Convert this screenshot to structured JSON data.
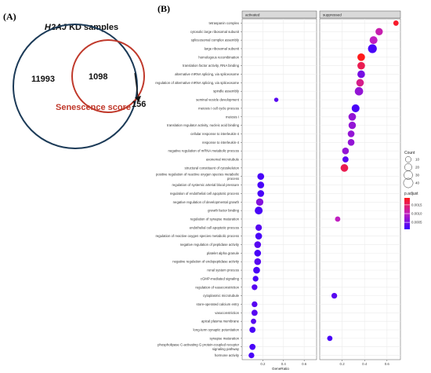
{
  "panel_a": {
    "label": "(A)",
    "title_italic": "H2AJ",
    "title_rest": " KD samples",
    "outer_count": "11993",
    "inner_count": "1098",
    "outside_count": "156",
    "inner_label": "Senescence score",
    "colors": {
      "outer": "#1b3a57",
      "inner": "#c0392b",
      "inner_label": "#c0392b"
    }
  },
  "panel_b": {
    "label": "(B)"
  },
  "chart_data": {
    "type": "scatter",
    "facets": [
      "activated",
      "suppressed"
    ],
    "xlabel": "GeneRatio",
    "x_ticks": [
      0.2,
      0.4,
      0.6
    ],
    "xlim": [
      0.0,
      0.72
    ],
    "terms": [
      "tetraspanin complex",
      "cytosolic large ribosomal subunit",
      "spliceosomal complex assembly",
      "large ribosomal subunit",
      "homologous recombination",
      "translation factor activity, RNA binding",
      "alternative mRNA splicing, via spliceosome",
      "regulation of alternative mRNA splicing, via spliceosome",
      "spindle assembly",
      "seminal vesicle development",
      "meiosis I cell cycle process",
      "meiosis I",
      "translation regulator activity, nucleic acid binding",
      "cellular response to interleukin-4",
      "response to interleukin-4",
      "negative regulation of mRNA metabolic process",
      "axonemal microtubule",
      "structural constituent of cytoskeleton",
      "positive regulation of reactive oxygen species metabolic process",
      "regulation of systemic arterial blood pressure",
      "regulation of endothelial cell apoptotic process",
      "negative regulation of developmental growth",
      "growth factor binding",
      "regulation of synapse maturation",
      "endothelial cell apoptotic process",
      "regulation of reactive oxygen species metabolic process",
      "negative regulation of peptidase activity",
      "platelet alpha granule",
      "negative regulation of endopeptidase activity",
      "renal system process",
      "cGMP-mediated signaling",
      "regulation of vasoconstriction",
      "cytoplasmic microtubule",
      "store-operated calcium entry",
      "vasoconstriction",
      "apical plasma membrane",
      "long-term synaptic potentiation",
      "synapse maturation",
      "phospholipase C-activating G protein-coupled receptor signaling pathway",
      "hormone activity"
    ],
    "points": [
      {
        "term": 0,
        "facet": "suppressed",
        "x": 0.68,
        "count": 8,
        "p_adjust": 0.0018
      },
      {
        "term": 1,
        "facet": "suppressed",
        "x": 0.53,
        "count": 20,
        "p_adjust": 0.0011
      },
      {
        "term": 2,
        "facet": "suppressed",
        "x": 0.48,
        "count": 24,
        "p_adjust": 0.001
      },
      {
        "term": 3,
        "facet": "suppressed",
        "x": 0.47,
        "count": 32,
        "p_adjust": 0.0002
      },
      {
        "term": 4,
        "facet": "suppressed",
        "x": 0.37,
        "count": 22,
        "p_adjust": 0.0019
      },
      {
        "term": 5,
        "facet": "suppressed",
        "x": 0.37,
        "count": 22,
        "p_adjust": 0.0016
      },
      {
        "term": 6,
        "facet": "suppressed",
        "x": 0.37,
        "count": 22,
        "p_adjust": 0.0005
      },
      {
        "term": 7,
        "facet": "suppressed",
        "x": 0.36,
        "count": 22,
        "p_adjust": 0.0013
      },
      {
        "term": 8,
        "facet": "suppressed",
        "x": 0.35,
        "count": 28,
        "p_adjust": 0.0007
      },
      {
        "term": 9,
        "facet": "activated",
        "x": 0.33,
        "count": 4,
        "p_adjust": 0.0003
      },
      {
        "term": 10,
        "facet": "suppressed",
        "x": 0.32,
        "count": 24,
        "p_adjust": 0.0002
      },
      {
        "term": 11,
        "facet": "suppressed",
        "x": 0.29,
        "count": 22,
        "p_adjust": 0.0007
      },
      {
        "term": 12,
        "facet": "suppressed",
        "x": 0.29,
        "count": 20,
        "p_adjust": 0.0007
      },
      {
        "term": 13,
        "facet": "suppressed",
        "x": 0.28,
        "count": 16,
        "p_adjust": 0.0007
      },
      {
        "term": 14,
        "facet": "suppressed",
        "x": 0.28,
        "count": 16,
        "p_adjust": 0.0007
      },
      {
        "term": 15,
        "facet": "suppressed",
        "x": 0.23,
        "count": 16,
        "p_adjust": 0.0007
      },
      {
        "term": 16,
        "facet": "suppressed",
        "x": 0.23,
        "count": 12,
        "p_adjust": 0.0003
      },
      {
        "term": 17,
        "facet": "suppressed",
        "x": 0.22,
        "count": 22,
        "p_adjust": 0.0016
      },
      {
        "term": 18,
        "facet": "activated",
        "x": 0.18,
        "count": 16,
        "p_adjust": 0.0002
      },
      {
        "term": 19,
        "facet": "activated",
        "x": 0.18,
        "count": 16,
        "p_adjust": 0.0002
      },
      {
        "term": 20,
        "facet": "activated",
        "x": 0.18,
        "count": 16,
        "p_adjust": 0.0002
      },
      {
        "term": 21,
        "facet": "activated",
        "x": 0.17,
        "count": 20,
        "p_adjust": 0.0006
      },
      {
        "term": 22,
        "facet": "activated",
        "x": 0.16,
        "count": 24,
        "p_adjust": 0.0002
      },
      {
        "term": 23,
        "facet": "suppressed",
        "x": 0.16,
        "count": 8,
        "p_adjust": 0.001
      },
      {
        "term": 24,
        "facet": "activated",
        "x": 0.16,
        "count": 14,
        "p_adjust": 0.0003
      },
      {
        "term": 25,
        "facet": "activated",
        "x": 0.16,
        "count": 16,
        "p_adjust": 0.0002
      },
      {
        "term": 26,
        "facet": "activated",
        "x": 0.15,
        "count": 16,
        "p_adjust": 0.0003
      },
      {
        "term": 27,
        "facet": "activated",
        "x": 0.15,
        "count": 16,
        "p_adjust": 0.0002
      },
      {
        "term": 28,
        "facet": "activated",
        "x": 0.15,
        "count": 16,
        "p_adjust": 0.0003
      },
      {
        "term": 29,
        "facet": "activated",
        "x": 0.14,
        "count": 16,
        "p_adjust": 0.0002
      },
      {
        "term": 30,
        "facet": "activated",
        "x": 0.13,
        "count": 10,
        "p_adjust": 0.0002
      },
      {
        "term": 31,
        "facet": "activated",
        "x": 0.12,
        "count": 10,
        "p_adjust": 0.0003
      },
      {
        "term": 32,
        "facet": "suppressed",
        "x": 0.13,
        "count": 10,
        "p_adjust": 0.0003
      },
      {
        "term": 33,
        "facet": "activated",
        "x": 0.12,
        "count": 10,
        "p_adjust": 0.0003
      },
      {
        "term": 34,
        "facet": "activated",
        "x": 0.12,
        "count": 12,
        "p_adjust": 0.0003
      },
      {
        "term": 35,
        "facet": "activated",
        "x": 0.11,
        "count": 8,
        "p_adjust": 0.0003
      },
      {
        "term": 36,
        "facet": "activated",
        "x": 0.1,
        "count": 12,
        "p_adjust": 0.0002
      },
      {
        "term": 37,
        "facet": "suppressed",
        "x": 0.09,
        "count": 8,
        "p_adjust": 0.0002
      },
      {
        "term": 38,
        "facet": "activated",
        "x": 0.1,
        "count": 12,
        "p_adjust": 0.0002
      },
      {
        "term": 39,
        "facet": "activated",
        "x": 0.09,
        "count": 10,
        "p_adjust": 0.0002
      }
    ],
    "size_legend": {
      "title": "Count",
      "values": [
        10,
        20,
        30,
        40
      ]
    },
    "color_legend": {
      "title": "p.adjust",
      "ticks": [
        0.0015,
        0.001,
        0.0005
      ],
      "tick_labels": [
        "0.0015",
        "0.0010",
        "0.0005"
      ],
      "range": [
        0.0001,
        0.0019
      ],
      "colors": {
        "low": "#3a00ff",
        "mid": "#c020c0",
        "high": "#ff1a1a"
      }
    },
    "grid": true,
    "legend_placement": "right"
  }
}
